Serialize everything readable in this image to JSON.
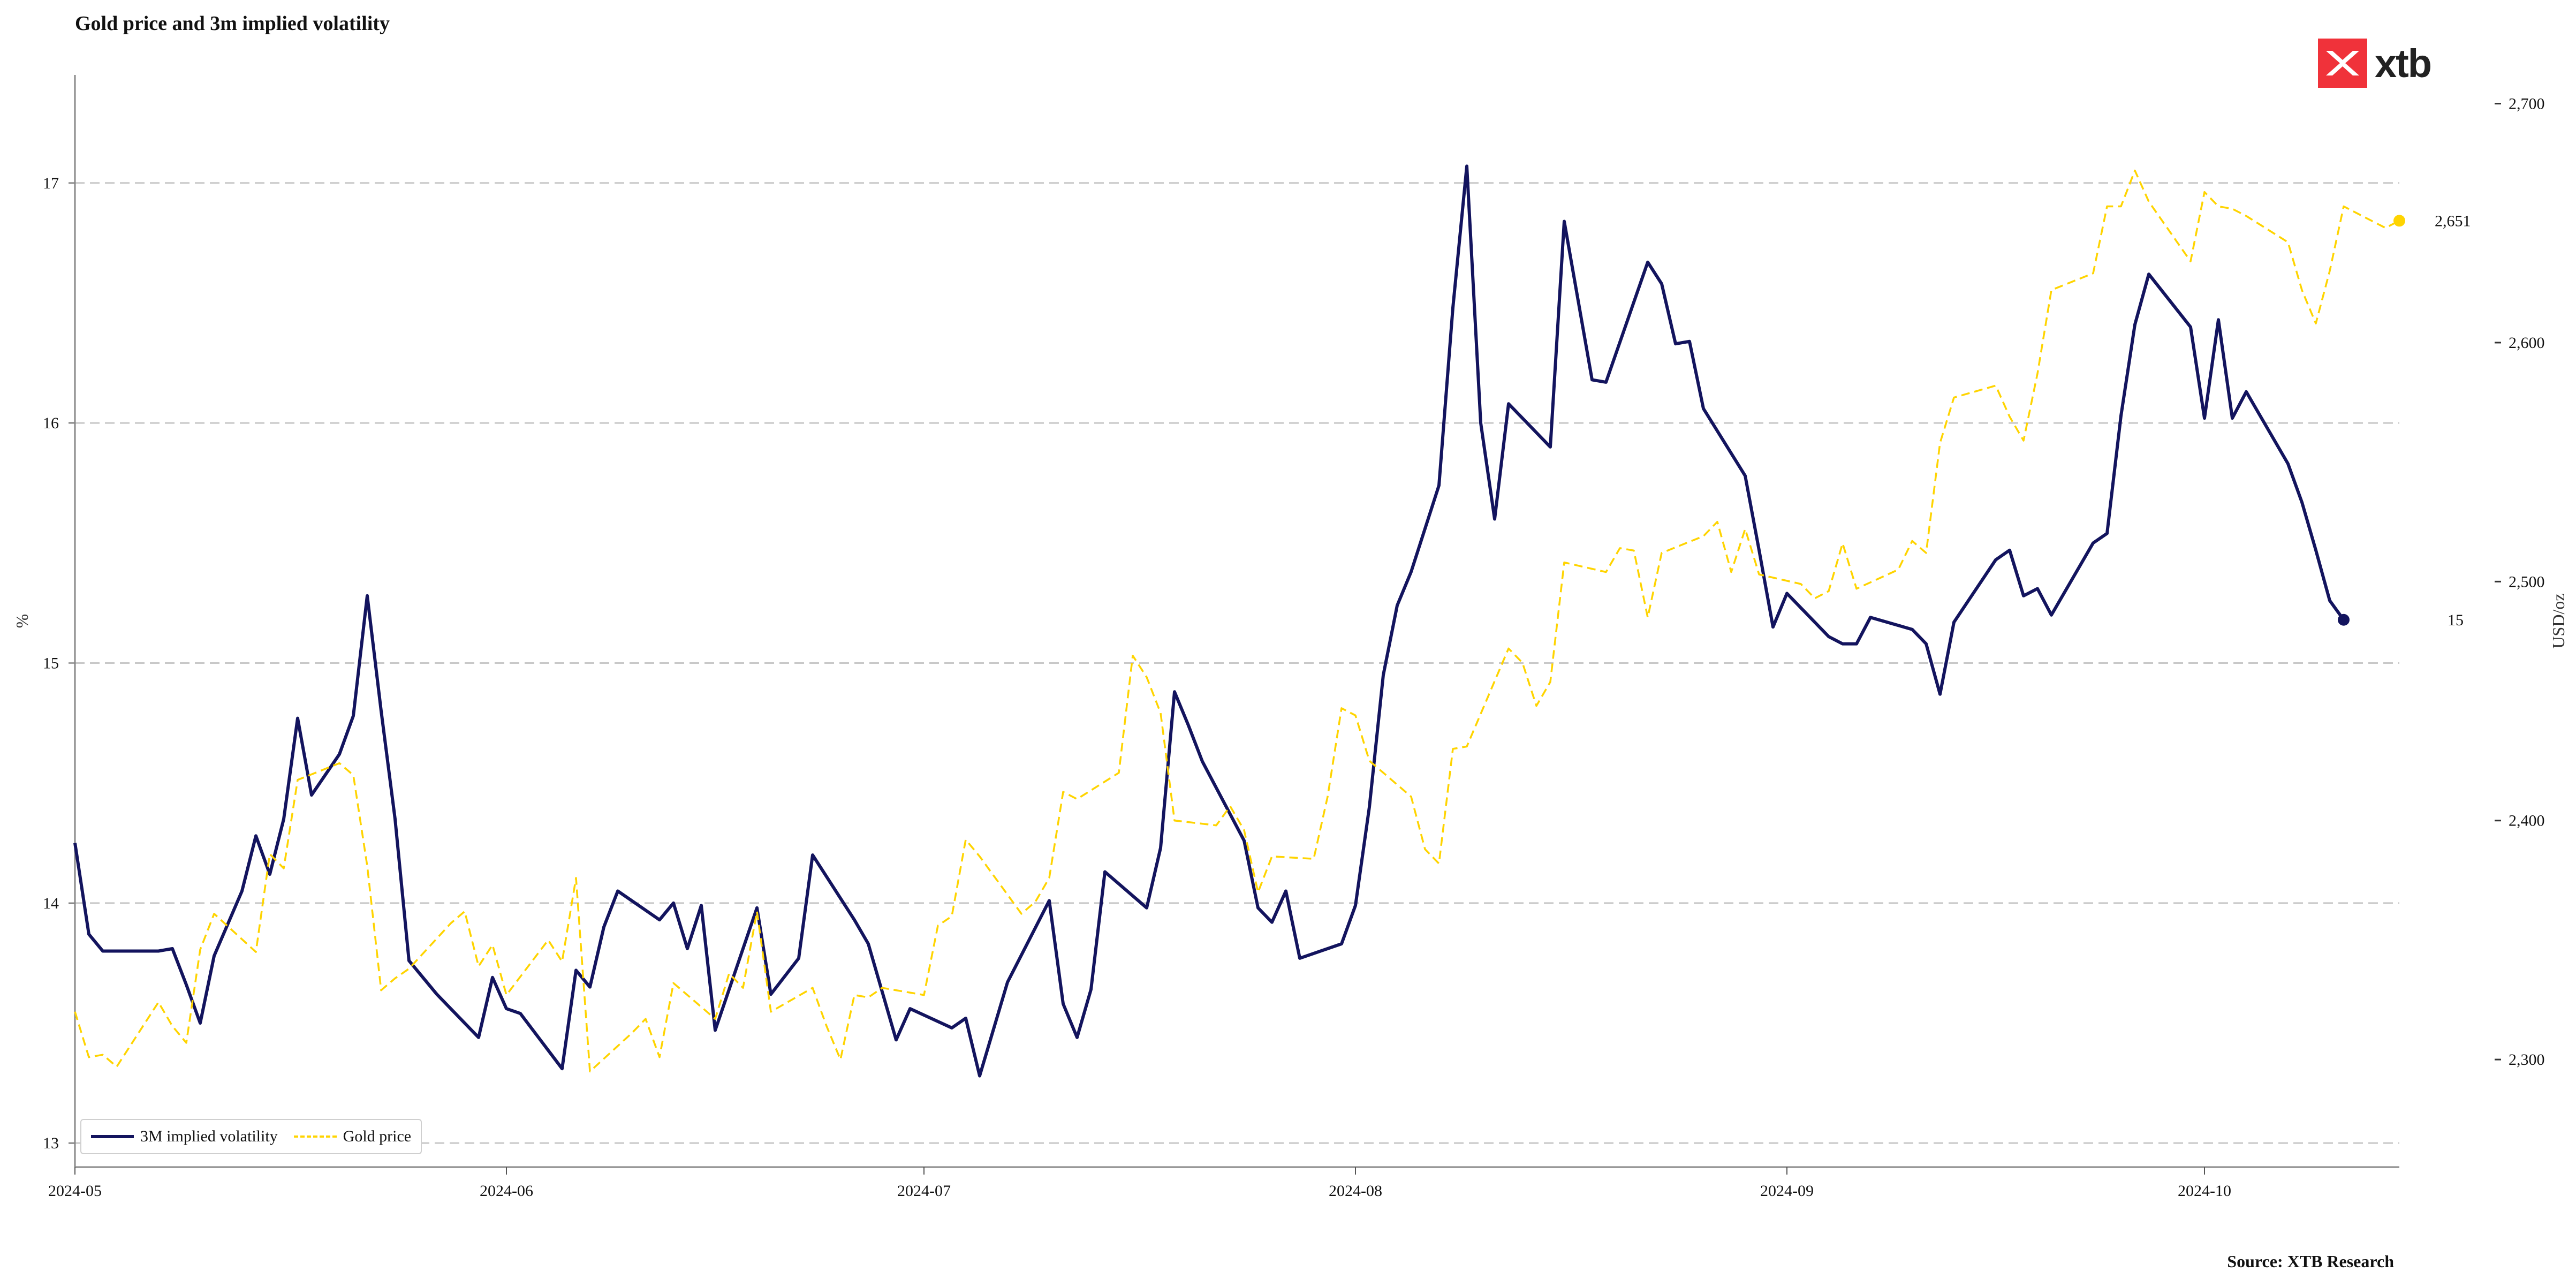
{
  "title": "Gold price and 3m implied volatility",
  "source": "Source: XTB Research",
  "logo_text": "xtb",
  "colors": {
    "volatility": "#13145e",
    "gold": "#ffd400",
    "grid": "#c8c8c8",
    "logo": "#f0323a"
  },
  "legend": {
    "placement": "bottom-left",
    "volatility": "3M implied volatility",
    "gold": "Gold price"
  },
  "chart_data": {
    "type": "line",
    "title": "Gold price and 3m implied volatility",
    "x_axis": {
      "ticks": [
        "2024-05",
        "2024-06",
        "2024-07",
        "2024-08",
        "2024-09",
        "2024-10"
      ],
      "xlim": [
        "2024-05-01",
        "2024-10-15"
      ]
    },
    "y_left": {
      "label": "%",
      "ticks": [
        13,
        14,
        15,
        16,
        17
      ],
      "ylim": [
        12.9,
        17.45
      ],
      "grid": true
    },
    "y_right": {
      "label": "USD/oz",
      "ticks": [
        "2,300",
        "2,400",
        "2,500",
        "2,600",
        "2,700"
      ],
      "ylim": [
        2255,
        2712
      ]
    },
    "end_labels": {
      "volatility": "15",
      "gold": "2,651"
    },
    "series": [
      {
        "name": "3M implied volatility",
        "axis": "left",
        "style": "solid",
        "points": [
          [
            "2024-05-01",
            14.25
          ],
          [
            "2024-05-02",
            13.87
          ],
          [
            "2024-05-03",
            13.8
          ],
          [
            "2024-05-06",
            13.8
          ],
          [
            "2024-05-07",
            13.8
          ],
          [
            "2024-05-08",
            13.81
          ],
          [
            "2024-05-09",
            13.66
          ],
          [
            "2024-05-10",
            13.5
          ],
          [
            "2024-05-11",
            13.78
          ],
          [
            "2024-05-13",
            14.05
          ],
          [
            "2024-05-14",
            14.28
          ],
          [
            "2024-05-15",
            14.12
          ],
          [
            "2024-05-16",
            14.35
          ],
          [
            "2024-05-17",
            14.77
          ],
          [
            "2024-05-18",
            14.45
          ],
          [
            "2024-05-20",
            14.62
          ],
          [
            "2024-05-21",
            14.78
          ],
          [
            "2024-05-22",
            15.28
          ],
          [
            "2024-05-23",
            14.8
          ],
          [
            "2024-05-24",
            14.35
          ],
          [
            "2024-05-25",
            13.76
          ],
          [
            "2024-05-27",
            13.62
          ],
          [
            "2024-05-30",
            13.44
          ],
          [
            "2024-05-31",
            13.69
          ],
          [
            "2024-06-01",
            13.56
          ],
          [
            "2024-06-02",
            13.54
          ],
          [
            "2024-06-05",
            13.31
          ],
          [
            "2024-06-06",
            13.72
          ],
          [
            "2024-06-07",
            13.65
          ],
          [
            "2024-06-08",
            13.9
          ],
          [
            "2024-06-09",
            14.05
          ],
          [
            "2024-06-12",
            13.93
          ],
          [
            "2024-06-13",
            14.0
          ],
          [
            "2024-06-14",
            13.81
          ],
          [
            "2024-06-15",
            13.99
          ],
          [
            "2024-06-16",
            13.47
          ],
          [
            "2024-06-19",
            13.98
          ],
          [
            "2024-06-20",
            13.62
          ],
          [
            "2024-06-22",
            13.77
          ],
          [
            "2024-06-23",
            14.2
          ],
          [
            "2024-06-26",
            13.93
          ],
          [
            "2024-06-27",
            13.83
          ],
          [
            "2024-06-28",
            13.63
          ],
          [
            "2024-06-29",
            13.43
          ],
          [
            "2024-06-30",
            13.56
          ],
          [
            "2024-07-03",
            13.48
          ],
          [
            "2024-07-04",
            13.52
          ],
          [
            "2024-07-05",
            13.28
          ],
          [
            "2024-07-07",
            13.67
          ],
          [
            "2024-07-10",
            14.01
          ],
          [
            "2024-07-11",
            13.58
          ],
          [
            "2024-07-12",
            13.44
          ],
          [
            "2024-07-13",
            13.64
          ],
          [
            "2024-07-14",
            14.13
          ],
          [
            "2024-07-17",
            13.98
          ],
          [
            "2024-07-18",
            14.23
          ],
          [
            "2024-07-19",
            14.88
          ],
          [
            "2024-07-20",
            14.74
          ],
          [
            "2024-07-21",
            14.59
          ],
          [
            "2024-07-24",
            14.26
          ],
          [
            "2024-07-25",
            13.98
          ],
          [
            "2024-07-26",
            13.92
          ],
          [
            "2024-07-27",
            14.05
          ],
          [
            "2024-07-28",
            13.77
          ],
          [
            "2024-07-31",
            13.83
          ],
          [
            "2024-08-01",
            13.99
          ],
          [
            "2024-08-02",
            14.4
          ],
          [
            "2024-08-03",
            14.95
          ],
          [
            "2024-08-04",
            15.24
          ],
          [
            "2024-08-05",
            15.38
          ],
          [
            "2024-08-07",
            15.74
          ],
          [
            "2024-08-08",
            16.48
          ],
          [
            "2024-08-09",
            17.07
          ],
          [
            "2024-08-10",
            16.0
          ],
          [
            "2024-08-11",
            15.6
          ],
          [
            "2024-08-12",
            16.08
          ],
          [
            "2024-08-15",
            15.9
          ],
          [
            "2024-08-16",
            16.84
          ],
          [
            "2024-08-18",
            16.18
          ],
          [
            "2024-08-19",
            16.17
          ],
          [
            "2024-08-22",
            16.67
          ],
          [
            "2024-08-23",
            16.58
          ],
          [
            "2024-08-24",
            16.33
          ],
          [
            "2024-08-25",
            16.34
          ],
          [
            "2024-08-26",
            16.06
          ],
          [
            "2024-08-29",
            15.78
          ],
          [
            "2024-08-30",
            15.47
          ],
          [
            "2024-08-31",
            15.15
          ],
          [
            "2024-09-01",
            15.29
          ],
          [
            "2024-09-04",
            15.11
          ],
          [
            "2024-09-05",
            15.08
          ],
          [
            "2024-09-06",
            15.08
          ],
          [
            "2024-09-07",
            15.19
          ],
          [
            "2024-09-10",
            15.14
          ],
          [
            "2024-09-11",
            15.08
          ],
          [
            "2024-09-12",
            14.87
          ],
          [
            "2024-09-13",
            15.17
          ],
          [
            "2024-09-16",
            15.43
          ],
          [
            "2024-09-17",
            15.47
          ],
          [
            "2024-09-18",
            15.28
          ],
          [
            "2024-09-19",
            15.31
          ],
          [
            "2024-09-20",
            15.2
          ],
          [
            "2024-09-23",
            15.5
          ],
          [
            "2024-09-24",
            15.54
          ],
          [
            "2024-09-25",
            16.03
          ],
          [
            "2024-09-26",
            16.41
          ],
          [
            "2024-09-27",
            16.62
          ],
          [
            "2024-09-30",
            16.4
          ],
          [
            "2024-10-01",
            16.02
          ],
          [
            "2024-10-02",
            16.43
          ],
          [
            "2024-10-03",
            16.02
          ],
          [
            "2024-10-04",
            16.13
          ],
          [
            "2024-10-07",
            15.83
          ],
          [
            "2024-10-08",
            15.67
          ],
          [
            "2024-10-09",
            15.47
          ],
          [
            "2024-10-10",
            15.26
          ],
          [
            "2024-10-11",
            15.18
          ]
        ]
      },
      {
        "name": "Gold price",
        "axis": "right",
        "style": "dashed",
        "points": [
          [
            "2024-05-01",
            2320
          ],
          [
            "2024-05-02",
            2301
          ],
          [
            "2024-05-03",
            2302
          ],
          [
            "2024-05-04",
            2297
          ],
          [
            "2024-05-07",
            2324
          ],
          [
            "2024-05-08",
            2314
          ],
          [
            "2024-05-09",
            2307
          ],
          [
            "2024-05-10",
            2346
          ],
          [
            "2024-05-11",
            2361
          ],
          [
            "2024-05-14",
            2345
          ],
          [
            "2024-05-15",
            2386
          ],
          [
            "2024-05-16",
            2380
          ],
          [
            "2024-05-17",
            2417
          ],
          [
            "2024-05-20",
            2424
          ],
          [
            "2024-05-21",
            2419
          ],
          [
            "2024-05-22",
            2381
          ],
          [
            "2024-05-23",
            2329
          ],
          [
            "2024-05-24",
            2334
          ],
          [
            "2024-05-25",
            2338
          ],
          [
            "2024-05-28",
            2357
          ],
          [
            "2024-05-29",
            2362
          ],
          [
            "2024-05-30",
            2339
          ],
          [
            "2024-05-31",
            2348
          ],
          [
            "2024-06-01",
            2327
          ],
          [
            "2024-06-04",
            2350
          ],
          [
            "2024-06-05",
            2341
          ],
          [
            "2024-06-06",
            2376
          ],
          [
            "2024-06-07",
            2295
          ],
          [
            "2024-06-10",
            2311
          ],
          [
            "2024-06-11",
            2317
          ],
          [
            "2024-06-12",
            2301
          ],
          [
            "2024-06-13",
            2332
          ],
          [
            "2024-06-16",
            2317
          ],
          [
            "2024-06-17",
            2336
          ],
          [
            "2024-06-18",
            2330
          ],
          [
            "2024-06-19",
            2362
          ],
          [
            "2024-06-20",
            2320
          ],
          [
            "2024-06-23",
            2330
          ],
          [
            "2024-06-24",
            2314
          ],
          [
            "2024-06-25",
            2300
          ],
          [
            "2024-06-26",
            2327
          ],
          [
            "2024-06-27",
            2326
          ],
          [
            "2024-06-28",
            2330
          ],
          [
            "2024-07-01",
            2327
          ],
          [
            "2024-07-02",
            2356
          ],
          [
            "2024-07-03",
            2360
          ],
          [
            "2024-07-04",
            2392
          ],
          [
            "2024-07-05",
            2385
          ],
          [
            "2024-07-08",
            2361
          ],
          [
            "2024-07-09",
            2366
          ],
          [
            "2024-07-10",
            2376
          ],
          [
            "2024-07-11",
            2412
          ],
          [
            "2024-07-12",
            2409
          ],
          [
            "2024-07-15",
            2420
          ],
          [
            "2024-07-16",
            2469
          ],
          [
            "2024-07-17",
            2460
          ],
          [
            "2024-07-18",
            2445
          ],
          [
            "2024-07-19",
            2400
          ],
          [
            "2024-07-22",
            2398
          ],
          [
            "2024-07-23",
            2406
          ],
          [
            "2024-07-24",
            2396
          ],
          [
            "2024-07-25",
            2370
          ],
          [
            "2024-07-26",
            2385
          ],
          [
            "2024-07-29",
            2384
          ],
          [
            "2024-07-30",
            2410
          ],
          [
            "2024-07-31",
            2447
          ],
          [
            "2024-08-01",
            2444
          ],
          [
            "2024-08-02",
            2425
          ],
          [
            "2024-08-05",
            2410
          ],
          [
            "2024-08-06",
            2388
          ],
          [
            "2024-08-07",
            2382
          ],
          [
            "2024-08-08",
            2430
          ],
          [
            "2024-08-09",
            2431
          ],
          [
            "2024-08-12",
            2472
          ],
          [
            "2024-08-13",
            2466
          ],
          [
            "2024-08-14",
            2448
          ],
          [
            "2024-08-15",
            2458
          ],
          [
            "2024-08-16",
            2508
          ],
          [
            "2024-08-19",
            2504
          ],
          [
            "2024-08-20",
            2514
          ],
          [
            "2024-08-21",
            2513
          ],
          [
            "2024-08-22",
            2485
          ],
          [
            "2024-08-23",
            2512
          ],
          [
            "2024-08-26",
            2519
          ],
          [
            "2024-08-27",
            2525
          ],
          [
            "2024-08-28",
            2504
          ],
          [
            "2024-08-29",
            2522
          ],
          [
            "2024-08-30",
            2503
          ],
          [
            "2024-09-02",
            2499
          ],
          [
            "2024-09-03",
            2493
          ],
          [
            "2024-09-04",
            2496
          ],
          [
            "2024-09-05",
            2516
          ],
          [
            "2024-09-06",
            2497
          ],
          [
            "2024-09-09",
            2505
          ],
          [
            "2024-09-10",
            2517
          ],
          [
            "2024-09-11",
            2512
          ],
          [
            "2024-09-12",
            2558
          ],
          [
            "2024-09-13",
            2577
          ],
          [
            "2024-09-16",
            2582
          ],
          [
            "2024-09-17",
            2569
          ],
          [
            "2024-09-18",
            2559
          ],
          [
            "2024-09-19",
            2587
          ],
          [
            "2024-09-20",
            2622
          ],
          [
            "2024-09-23",
            2629
          ],
          [
            "2024-09-24",
            2657
          ],
          [
            "2024-09-25",
            2657
          ],
          [
            "2024-09-26",
            2672
          ],
          [
            "2024-09-27",
            2659
          ],
          [
            "2024-09-30",
            2634
          ],
          [
            "2024-10-01",
            2663
          ],
          [
            "2024-10-02",
            2657
          ],
          [
            "2024-10-03",
            2656
          ],
          [
            "2024-10-04",
            2653
          ],
          [
            "2024-10-07",
            2642
          ],
          [
            "2024-10-08",
            2622
          ],
          [
            "2024-10-09",
            2608
          ],
          [
            "2024-10-10",
            2630
          ],
          [
            "2024-10-11",
            2657
          ],
          [
            "2024-10-14",
            2648
          ],
          [
            "2024-10-15",
            2651
          ]
        ]
      }
    ]
  }
}
